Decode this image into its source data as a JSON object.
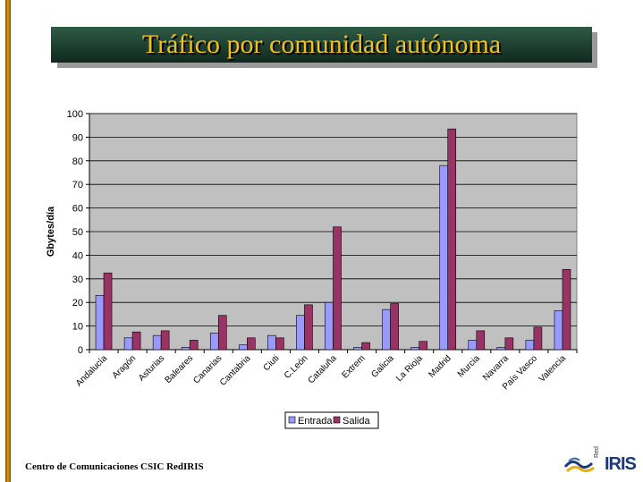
{
  "slide": {
    "title": "Tráfico por comunidad autónoma",
    "footer": "Centro de Comunicaciones CSIC  RedIRIS",
    "logo": {
      "small": "Red",
      "main": "IRIS"
    }
  },
  "colors": {
    "title_bg": "#1c3d2e",
    "title_text": "#f0c020",
    "plot_bg": "#c0c0c0",
    "entrada": "#9999ff",
    "salida": "#993366"
  },
  "chart_data": {
    "type": "bar",
    "title": "",
    "xlabel": "",
    "ylabel": "Gbytes/día",
    "ylim": [
      0,
      100
    ],
    "yticks": [
      0,
      10,
      20,
      30,
      40,
      50,
      60,
      70,
      80,
      90,
      100
    ],
    "grid": true,
    "legend_position": "bottom",
    "categories": [
      "Andalucía",
      "Aragón",
      "Asturias",
      "Baleares",
      "Canarias",
      "Cantabria",
      "Ciuti",
      "C.León",
      "Cataluña",
      "Extrem",
      "Galicia",
      "La Rioja",
      "Madrid",
      "Murcia",
      "Navarra",
      "País Vasco",
      "Valencia"
    ],
    "series": [
      {
        "name": "Entrada",
        "color": "#9999ff",
        "values": [
          23,
          5,
          6,
          1,
          7,
          2,
          6,
          14.5,
          20,
          1,
          17,
          1,
          78,
          4,
          1,
          4,
          16.5
        ]
      },
      {
        "name": "Salida",
        "color": "#993366",
        "values": [
          32.5,
          7.5,
          8,
          4,
          14.5,
          5,
          5,
          19,
          52,
          3,
          19.5,
          3.5,
          93.5,
          8,
          5,
          9.5,
          34
        ]
      }
    ]
  }
}
